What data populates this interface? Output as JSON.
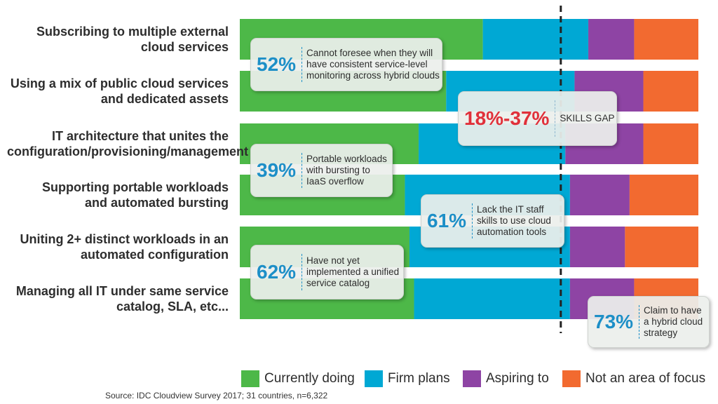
{
  "chart_data": {
    "type": "bar",
    "orientation": "horizontal",
    "stacked": true,
    "percent_stacked": true,
    "categories": [
      "Subscribing to multiple external\ncloud services",
      "Using a mix of public cloud services\nand dedicated assets",
      "IT architecture that unites the\nconfiguration/provisioning/management",
      "Supporting portable workloads\nand automated bursting",
      "Uniting 2+ distinct workloads in an\nautomated configuration",
      "Managing all IT under same service\ncatalog, SLA, etc..."
    ],
    "series": [
      {
        "name": "Currently doing",
        "color": "#4db848",
        "values": [
          53,
          45,
          39,
          36,
          37,
          38
        ]
      },
      {
        "name": "Firm plans",
        "color": "#00a8d4",
        "values": [
          23,
          28,
          32,
          36,
          35,
          34
        ]
      },
      {
        "name": "Aspiring to",
        "color": "#8e44a4",
        "values": [
          10,
          15,
          17,
          13,
          12,
          14
        ]
      },
      {
        "name": "Not an area of focus",
        "color": "#f26a30",
        "values": [
          14,
          12,
          12,
          15,
          16,
          14
        ]
      }
    ],
    "xlim": [
      0,
      100
    ],
    "legend_position": "bottom",
    "grid": false,
    "reference_line": {
      "x": 70,
      "style": "dashed",
      "color": "#222222"
    },
    "callouts": [
      {
        "value": "52%",
        "text": "Cannot foresee when they will\nhave consistent service-level\nmonitoring across hybrid clouds",
        "style": "normal"
      },
      {
        "value": "18%-37%",
        "text": "SKILLS GAP",
        "style": "gap"
      },
      {
        "value": "39%",
        "text": "Portable workloads\nwith bursting to\nIaaS overflow",
        "style": "normal"
      },
      {
        "value": "61%",
        "text": "Lack the IT staff\nskills to use cloud\nautomation tools",
        "style": "normal"
      },
      {
        "value": "62%",
        "text": "Have not yet\nimplemented a unified\nservice catalog",
        "style": "normal"
      },
      {
        "value": "73%",
        "text": "Claim to have\na hybrid cloud\nstrategy",
        "style": "normal"
      }
    ]
  },
  "source": "Source: IDC Cloudview  Survey 2017; 31 countries, n=6,322"
}
